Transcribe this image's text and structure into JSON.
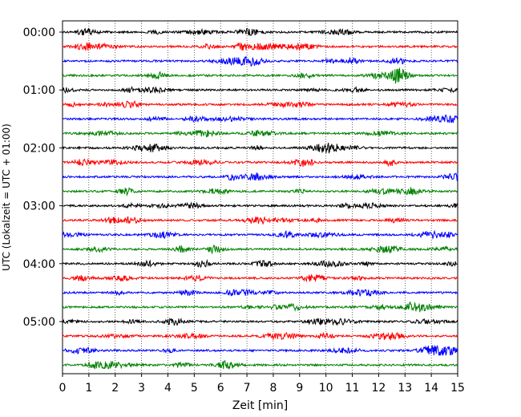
{
  "chart_data": {
    "type": "line",
    "title": "",
    "xlabel": "Zeit  [min]",
    "ylabel": "UTC (Lokalzeit = UTC + 01:00)",
    "xlim": [
      0,
      15
    ],
    "x_ticks": [
      "0",
      "1",
      "2",
      "3",
      "4",
      "5",
      "6",
      "7",
      "8",
      "9",
      "10",
      "11",
      "12",
      "13",
      "14",
      "15"
    ],
    "y_ticks": [
      "00:00",
      "01:00",
      "02:00",
      "03:00",
      "04:00",
      "05:00"
    ],
    "grid": "vertical dotted lines at each minute",
    "legend": "none",
    "trace_minutes_per_row": 15,
    "rows_per_hour": 4,
    "trace_color_cycle": [
      "#000000",
      "#ff0000",
      "#0000ff",
      "#008000"
    ],
    "series": [
      {
        "start": "00:00",
        "color": "#000000"
      },
      {
        "start": "00:15",
        "color": "#ff0000"
      },
      {
        "start": "00:30",
        "color": "#0000ff"
      },
      {
        "start": "00:45",
        "color": "#008000"
      },
      {
        "start": "01:00",
        "color": "#000000"
      },
      {
        "start": "01:15",
        "color": "#ff0000"
      },
      {
        "start": "01:30",
        "color": "#0000ff"
      },
      {
        "start": "01:45",
        "color": "#008000"
      },
      {
        "start": "02:00",
        "color": "#000000"
      },
      {
        "start": "02:15",
        "color": "#ff0000"
      },
      {
        "start": "02:30",
        "color": "#0000ff"
      },
      {
        "start": "02:45",
        "color": "#008000"
      },
      {
        "start": "03:00",
        "color": "#000000"
      },
      {
        "start": "03:15",
        "color": "#ff0000"
      },
      {
        "start": "03:30",
        "color": "#0000ff"
      },
      {
        "start": "03:45",
        "color": "#008000"
      },
      {
        "start": "04:00",
        "color": "#000000"
      },
      {
        "start": "04:15",
        "color": "#ff0000"
      },
      {
        "start": "04:30",
        "color": "#0000ff"
      },
      {
        "start": "04:45",
        "color": "#008000"
      },
      {
        "start": "05:00",
        "color": "#000000"
      },
      {
        "start": "05:15",
        "color": "#ff0000"
      },
      {
        "start": "05:30",
        "color": "#0000ff"
      },
      {
        "start": "05:45",
        "color": "#008000"
      }
    ]
  }
}
